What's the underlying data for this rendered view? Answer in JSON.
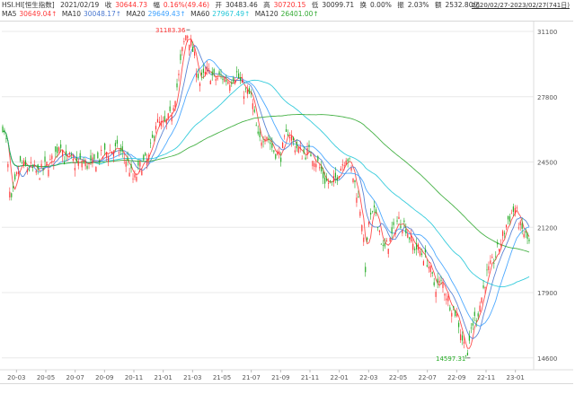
{
  "header": {
    "symbol": "HSI.HI[恒生指数]",
    "date": "2021/02/19",
    "close_label": "收",
    "close_value": "30644.73",
    "change_label": "幅",
    "change_value": "0.16%(49.46)",
    "open_label": "开",
    "open_value": "30483.46",
    "high_label": "高",
    "high_value": "30720.15",
    "low_label": "低",
    "low_value": "30099.71",
    "turnover_label": "换",
    "turnover_value": "0.00%",
    "amplitude_label": "振",
    "amplitude_value": "2.03%",
    "amount_label": "额",
    "amount_value": "2532.80亿",
    "range": "2020/02/27-2023/02/27(741日)"
  },
  "ma_legend": [
    {
      "label": "MA5",
      "value": "30649.04↑",
      "color": "#ff3b3b"
    },
    {
      "label": "MA10",
      "value": "30048.17↑",
      "color": "#4a78d0"
    },
    {
      "label": "MA20",
      "value": "29649.43↑",
      "color": "#3aa0ff"
    },
    {
      "label": "MA60",
      "value": "27967.49↑",
      "color": "#22c7d8"
    },
    {
      "label": "MA120",
      "value": "26401.00↑",
      "color": "#33aa33"
    }
  ],
  "colors": {
    "up": "#ff3333",
    "down": "#22aa22",
    "grid": "#e8e8e8",
    "axis_text": "#555555",
    "max_label": "#ff3333",
    "min_label": "#22aa22"
  },
  "chart_data": {
    "type": "candlestick",
    "ylim": [
      14000,
      31600
    ],
    "y_ticks": [
      31100,
      27800,
      24500,
      21200,
      17900,
      14600
    ],
    "x_tick_labels": [
      "20-03",
      "20-05",
      "20-07",
      "20-09",
      "20-11",
      "21-01",
      "21-03",
      "21-05",
      "21-07",
      "21-09",
      "21-11",
      "22-01",
      "22-03",
      "22-05",
      "22-07",
      "22-09",
      "22-11",
      "23-01"
    ],
    "x_tick_months": [
      1,
      3,
      5,
      7,
      9,
      11,
      13,
      15,
      17,
      19,
      21,
      23,
      25,
      27,
      29,
      31,
      33,
      35
    ],
    "month_span": [
      0,
      36
    ],
    "anchors": [
      [
        0,
        26600
      ],
      [
        0.3,
        25500
      ],
      [
        0.6,
        22200
      ],
      [
        1,
        23700
      ],
      [
        1.3,
        24500
      ],
      [
        1.6,
        24200
      ],
      [
        2,
        24200
      ],
      [
        2.5,
        23900
      ],
      [
        3,
        24300
      ],
      [
        3.5,
        24600
      ],
      [
        4,
        25600
      ],
      [
        4.3,
        24500
      ],
      [
        4.6,
        24700
      ],
      [
        5,
        24400
      ],
      [
        5.5,
        24500
      ],
      [
        6,
        24300
      ],
      [
        6.5,
        24600
      ],
      [
        7,
        24900
      ],
      [
        7.5,
        25100
      ],
      [
        8,
        25100
      ],
      [
        8.5,
        24600
      ],
      [
        9,
        23500
      ],
      [
        9.5,
        24400
      ],
      [
        10,
        24600
      ],
      [
        10.5,
        26500
      ],
      [
        11,
        26300
      ],
      [
        11.5,
        26800
      ],
      [
        12,
        28500
      ],
      [
        12.3,
        30100
      ],
      [
        12.6,
        31100
      ],
      [
        13,
        30200
      ],
      [
        13.5,
        28500
      ],
      [
        14,
        29100
      ],
      [
        14.5,
        28700
      ],
      [
        15,
        28800
      ],
      [
        15.5,
        28600
      ],
      [
        16,
        29000
      ],
      [
        16.5,
        28100
      ],
      [
        17,
        27800
      ],
      [
        17.5,
        25500
      ],
      [
        18,
        26000
      ],
      [
        18.5,
        25100
      ],
      [
        19,
        24800
      ],
      [
        19.5,
        26100
      ],
      [
        20,
        25300
      ],
      [
        20.5,
        24900
      ],
      [
        21,
        25000
      ],
      [
        21.5,
        24500
      ],
      [
        22,
        23600
      ],
      [
        22.5,
        23300
      ],
      [
        23,
        24100
      ],
      [
        23.5,
        24900
      ],
      [
        24,
        23600
      ],
      [
        24.5,
        21900
      ],
      [
        24.8,
        19000
      ],
      [
        25,
        21500
      ],
      [
        25.5,
        22000
      ],
      [
        26,
        20000
      ],
      [
        26.5,
        20600
      ],
      [
        27,
        21600
      ],
      [
        27.5,
        21300
      ],
      [
        28,
        20300
      ],
      [
        28.5,
        20000
      ],
      [
        29,
        19500
      ],
      [
        29.5,
        18200
      ],
      [
        30,
        18400
      ],
      [
        30.5,
        17400
      ],
      [
        31,
        16800
      ],
      [
        31.4,
        15500
      ],
      [
        31.8,
        14700
      ],
      [
        32,
        16200
      ],
      [
        32.5,
        17000
      ],
      [
        33,
        18700
      ],
      [
        33.5,
        19500
      ],
      [
        34,
        20400
      ],
      [
        34.5,
        21600
      ],
      [
        35,
        22200
      ],
      [
        35.3,
        21200
      ],
      [
        35.6,
        20900
      ],
      [
        36,
        20300
      ]
    ],
    "max_label": "31183.36",
    "max_at": [
      12.7,
      31183.36
    ],
    "min_label": "14597.31",
    "min_at": [
      31.8,
      14597.31
    ]
  }
}
